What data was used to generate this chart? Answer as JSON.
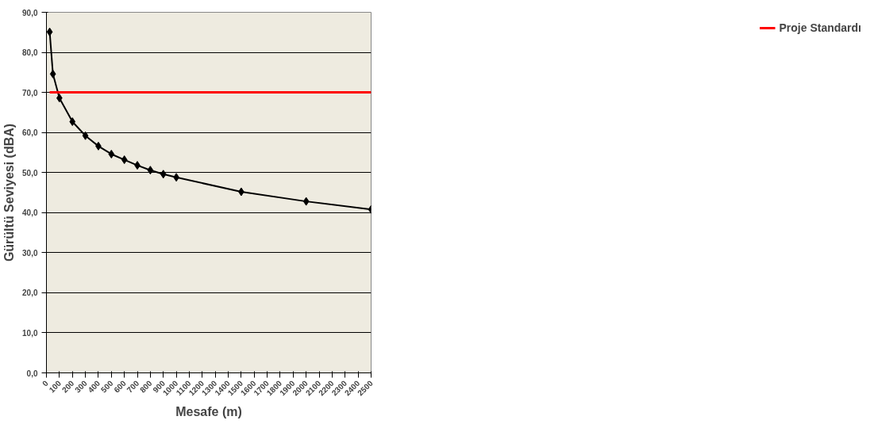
{
  "chart_data": {
    "type": "line",
    "xlabel": "Mesafe (m)",
    "ylabel": "Gürültü Seviyesi (dBA)",
    "series": [
      {
        "name": null,
        "color": "#000000",
        "marker": "diamond",
        "x": [
          25,
          50,
          100,
          200,
          300,
          400,
          500,
          600,
          700,
          800,
          900,
          1000,
          1500,
          2000,
          2500
        ],
        "values": [
          85.1,
          74.6,
          68.6,
          62.7,
          59.2,
          56.6,
          54.6,
          53.2,
          51.8,
          50.6,
          49.6,
          48.8,
          45.2,
          42.8,
          40.8
        ]
      },
      {
        "name": "Proje Standardı",
        "color": "#ff0000",
        "marker": "none",
        "x": [
          25,
          2500
        ],
        "values": [
          70,
          70
        ]
      }
    ],
    "xlim": [
      0,
      2500
    ],
    "xticks": [
      0,
      100,
      200,
      300,
      400,
      500,
      600,
      700,
      800,
      900,
      1000,
      1100,
      1200,
      1300,
      1400,
      1500,
      1600,
      1700,
      1800,
      1900,
      2000,
      2100,
      2200,
      2300,
      2400,
      2500
    ],
    "ylim": [
      0,
      90
    ],
    "yticks": [
      {
        "value": 0,
        "label": "0,0"
      },
      {
        "value": 10,
        "label": "10,0"
      },
      {
        "value": 20,
        "label": "20,0"
      },
      {
        "value": 30,
        "label": "30,0"
      },
      {
        "value": 40,
        "label": "40,0"
      },
      {
        "value": 50,
        "label": "50,0"
      },
      {
        "value": 60,
        "label": "60,0"
      },
      {
        "value": 70,
        "label": "70,0"
      },
      {
        "value": 80,
        "label": "80,0"
      },
      {
        "value": 90,
        "label": "90,0"
      }
    ],
    "grid": "y",
    "legend": "right",
    "line_style": "solid"
  }
}
